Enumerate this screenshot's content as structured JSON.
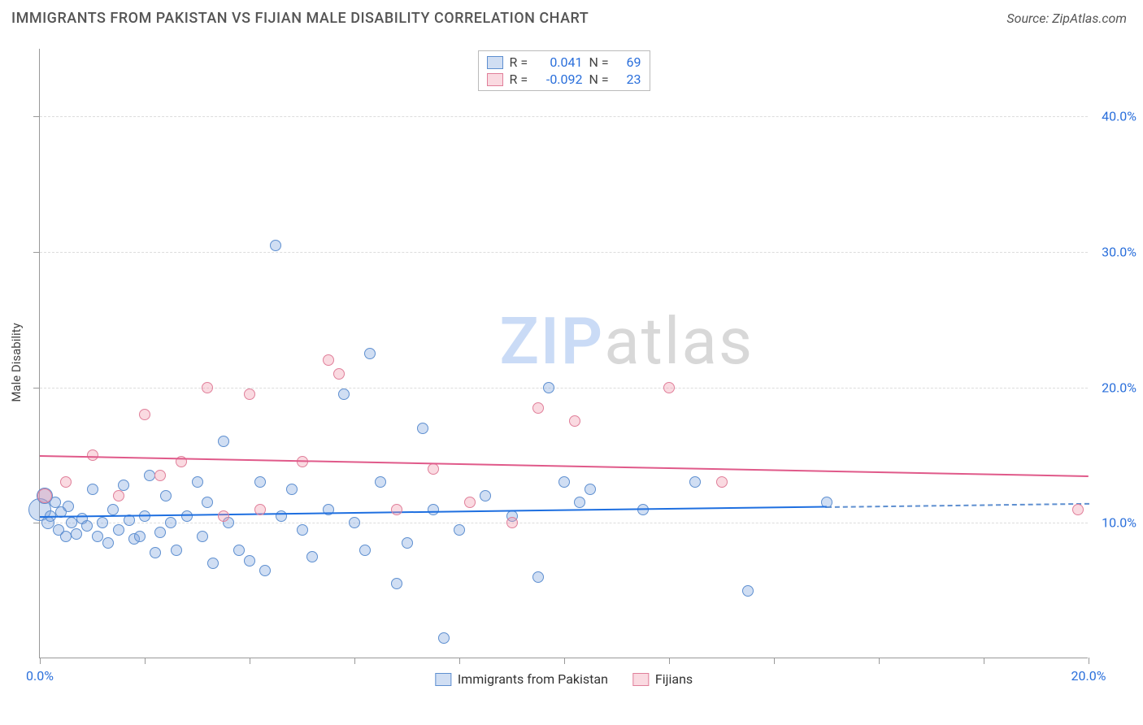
{
  "header": {
    "title": "IMMIGRANTS FROM PAKISTAN VS FIJIAN MALE DISABILITY CORRELATION CHART",
    "source_prefix": "Source: ",
    "source": "ZipAtlas.com"
  },
  "chart": {
    "type": "scatter",
    "ylabel": "Male Disability",
    "xlim": [
      0,
      20
    ],
    "ylim": [
      0,
      45
    ],
    "xtick_positions": [
      0,
      2,
      4,
      6,
      8,
      10,
      12,
      14,
      16,
      18,
      20
    ],
    "xtick_labels": {
      "0": "0.0%",
      "20": "20.0%"
    },
    "ytick_positions": [
      10,
      20,
      30,
      40
    ],
    "ytick_labels": {
      "10": "10.0%",
      "20": "20.0%",
      "30": "30.0%",
      "40": "40.0%"
    },
    "grid_color": "#dddddd",
    "background_color": "#ffffff",
    "series": {
      "pakistan": {
        "label": "Immigrants from Pakistan",
        "fill": "rgba(120,160,220,0.35)",
        "stroke": "#5e8fd0",
        "trend_color": "#1e6fe0",
        "trend_y_start": 10.5,
        "trend_y_end": 11.5,
        "trend_solid_until_x": 15,
        "R": "0.041",
        "N": "69",
        "points": [
          {
            "x": 0.0,
            "y": 11.0,
            "r": 14
          },
          {
            "x": 0.1,
            "y": 12.0,
            "r": 10
          },
          {
            "x": 0.15,
            "y": 10.0,
            "r": 8
          },
          {
            "x": 0.2,
            "y": 10.5,
            "r": 7
          },
          {
            "x": 0.3,
            "y": 11.5,
            "r": 7
          },
          {
            "x": 0.35,
            "y": 9.5,
            "r": 7
          },
          {
            "x": 0.4,
            "y": 10.8,
            "r": 7
          },
          {
            "x": 0.5,
            "y": 9.0,
            "r": 7
          },
          {
            "x": 0.55,
            "y": 11.2,
            "r": 7
          },
          {
            "x": 0.6,
            "y": 10.0,
            "r": 7
          },
          {
            "x": 0.7,
            "y": 9.2,
            "r": 7
          },
          {
            "x": 0.8,
            "y": 10.3,
            "r": 7
          },
          {
            "x": 0.9,
            "y": 9.8,
            "r": 7
          },
          {
            "x": 1.0,
            "y": 12.5,
            "r": 7
          },
          {
            "x": 1.1,
            "y": 9.0,
            "r": 7
          },
          {
            "x": 1.2,
            "y": 10.0,
            "r": 7
          },
          {
            "x": 1.3,
            "y": 8.5,
            "r": 7
          },
          {
            "x": 1.4,
            "y": 11.0,
            "r": 7
          },
          {
            "x": 1.5,
            "y": 9.5,
            "r": 7
          },
          {
            "x": 1.6,
            "y": 12.8,
            "r": 7
          },
          {
            "x": 1.7,
            "y": 10.2,
            "r": 7
          },
          {
            "x": 1.8,
            "y": 8.8,
            "r": 7
          },
          {
            "x": 1.9,
            "y": 9.0,
            "r": 7
          },
          {
            "x": 2.0,
            "y": 10.5,
            "r": 7
          },
          {
            "x": 2.1,
            "y": 13.5,
            "r": 7
          },
          {
            "x": 2.2,
            "y": 7.8,
            "r": 7
          },
          {
            "x": 2.3,
            "y": 9.3,
            "r": 7
          },
          {
            "x": 2.4,
            "y": 12.0,
            "r": 7
          },
          {
            "x": 2.5,
            "y": 10.0,
            "r": 7
          },
          {
            "x": 2.6,
            "y": 8.0,
            "r": 7
          },
          {
            "x": 2.8,
            "y": 10.5,
            "r": 7
          },
          {
            "x": 3.0,
            "y": 13.0,
            "r": 7
          },
          {
            "x": 3.1,
            "y": 9.0,
            "r": 7
          },
          {
            "x": 3.2,
            "y": 11.5,
            "r": 7
          },
          {
            "x": 3.3,
            "y": 7.0,
            "r": 7
          },
          {
            "x": 3.5,
            "y": 16.0,
            "r": 7
          },
          {
            "x": 3.6,
            "y": 10.0,
            "r": 7
          },
          {
            "x": 3.8,
            "y": 8.0,
            "r": 7
          },
          {
            "x": 4.0,
            "y": 7.2,
            "r": 7
          },
          {
            "x": 4.2,
            "y": 13.0,
            "r": 7
          },
          {
            "x": 4.3,
            "y": 6.5,
            "r": 7
          },
          {
            "x": 4.5,
            "y": 30.5,
            "r": 7
          },
          {
            "x": 4.6,
            "y": 10.5,
            "r": 7
          },
          {
            "x": 4.8,
            "y": 12.5,
            "r": 7
          },
          {
            "x": 5.0,
            "y": 9.5,
            "r": 7
          },
          {
            "x": 5.2,
            "y": 7.5,
            "r": 7
          },
          {
            "x": 5.5,
            "y": 11.0,
            "r": 7
          },
          {
            "x": 5.8,
            "y": 19.5,
            "r": 7
          },
          {
            "x": 6.0,
            "y": 10.0,
            "r": 7
          },
          {
            "x": 6.2,
            "y": 8.0,
            "r": 7
          },
          {
            "x": 6.3,
            "y": 22.5,
            "r": 7
          },
          {
            "x": 6.5,
            "y": 13.0,
            "r": 7
          },
          {
            "x": 6.8,
            "y": 5.5,
            "r": 7
          },
          {
            "x": 7.0,
            "y": 8.5,
            "r": 7
          },
          {
            "x": 7.3,
            "y": 17.0,
            "r": 7
          },
          {
            "x": 7.5,
            "y": 11.0,
            "r": 7
          },
          {
            "x": 7.7,
            "y": 1.5,
            "r": 7
          },
          {
            "x": 8.0,
            "y": 9.5,
            "r": 7
          },
          {
            "x": 8.5,
            "y": 12.0,
            "r": 7
          },
          {
            "x": 9.0,
            "y": 10.5,
            "r": 7
          },
          {
            "x": 9.5,
            "y": 6.0,
            "r": 7
          },
          {
            "x": 9.7,
            "y": 20.0,
            "r": 7
          },
          {
            "x": 10.0,
            "y": 13.0,
            "r": 7
          },
          {
            "x": 10.3,
            "y": 11.5,
            "r": 7
          },
          {
            "x": 10.5,
            "y": 12.5,
            "r": 7
          },
          {
            "x": 11.5,
            "y": 11.0,
            "r": 7
          },
          {
            "x": 12.5,
            "y": 13.0,
            "r": 7
          },
          {
            "x": 13.5,
            "y": 5.0,
            "r": 7
          },
          {
            "x": 15.0,
            "y": 11.5,
            "r": 7
          }
        ]
      },
      "fijian": {
        "label": "Fijians",
        "fill": "rgba(240,150,170,0.35)",
        "stroke": "#e07f9a",
        "trend_color": "#e05a8a",
        "trend_y_start": 15.0,
        "trend_y_end": 13.5,
        "trend_solid_until_x": 20,
        "R": "-0.092",
        "N": "23",
        "points": [
          {
            "x": 0.1,
            "y": 12.0,
            "r": 9
          },
          {
            "x": 0.5,
            "y": 13.0,
            "r": 7
          },
          {
            "x": 1.0,
            "y": 15.0,
            "r": 7
          },
          {
            "x": 1.5,
            "y": 12.0,
            "r": 7
          },
          {
            "x": 2.0,
            "y": 18.0,
            "r": 7
          },
          {
            "x": 2.3,
            "y": 13.5,
            "r": 7
          },
          {
            "x": 2.7,
            "y": 14.5,
            "r": 7
          },
          {
            "x": 3.2,
            "y": 20.0,
            "r": 7
          },
          {
            "x": 3.5,
            "y": 10.5,
            "r": 7
          },
          {
            "x": 4.0,
            "y": 19.5,
            "r": 7
          },
          {
            "x": 4.2,
            "y": 11.0,
            "r": 7
          },
          {
            "x": 5.0,
            "y": 14.5,
            "r": 7
          },
          {
            "x": 5.5,
            "y": 22.0,
            "r": 7
          },
          {
            "x": 5.7,
            "y": 21.0,
            "r": 7
          },
          {
            "x": 6.8,
            "y": 11.0,
            "r": 7
          },
          {
            "x": 7.5,
            "y": 14.0,
            "r": 7
          },
          {
            "x": 8.2,
            "y": 11.5,
            "r": 7
          },
          {
            "x": 9.0,
            "y": 10.0,
            "r": 7
          },
          {
            "x": 9.5,
            "y": 18.5,
            "r": 7
          },
          {
            "x": 10.2,
            "y": 17.5,
            "r": 7
          },
          {
            "x": 12.0,
            "y": 20.0,
            "r": 7
          },
          {
            "x": 13.0,
            "y": 13.0,
            "r": 7
          },
          {
            "x": 19.8,
            "y": 11.0,
            "r": 7
          }
        ]
      }
    },
    "stats_legend": {
      "r_label": "R =",
      "n_label": "N ="
    },
    "watermark": {
      "part1": "ZIP",
      "part2": "atlas"
    }
  }
}
